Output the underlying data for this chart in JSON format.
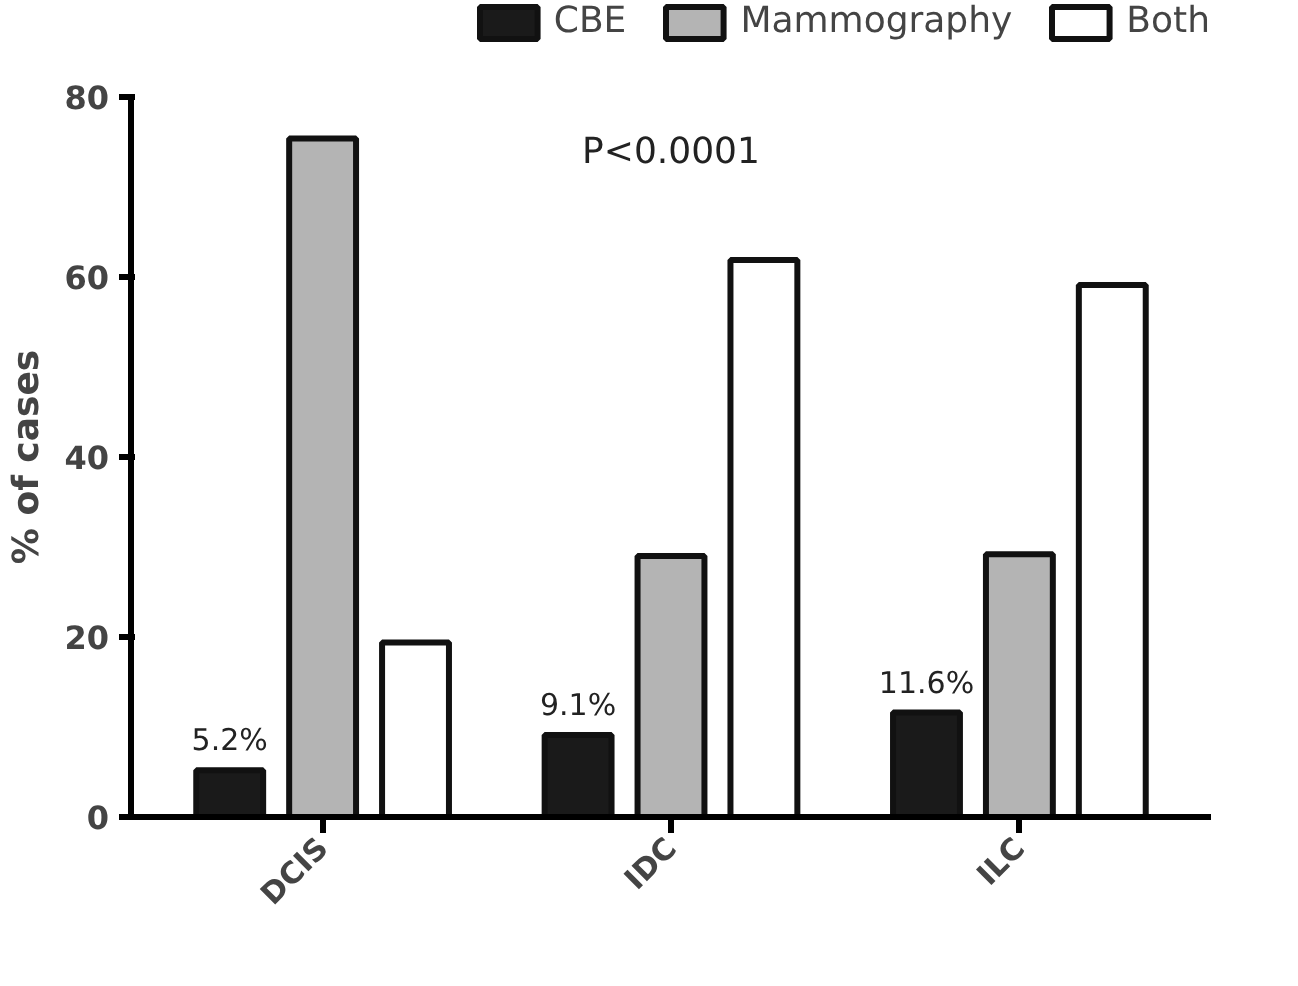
{
  "chart_data": {
    "type": "bar",
    "ylabel": "% of cases",
    "categories": [
      "DCIS",
      "IDC",
      "ILC"
    ],
    "series": [
      {
        "name": "CBE",
        "color": "#1a1a1a",
        "values": [
          5.2,
          9.1,
          11.6
        ],
        "value_labels": [
          "5.2%",
          "9.1%",
          "11.6%"
        ]
      },
      {
        "name": "Mammography",
        "color": "#b4b4b4",
        "values": [
          75.4,
          29.0,
          29.2
        ]
      },
      {
        "name": "Both",
        "color": "#ffffff",
        "values": [
          19.4,
          61.9,
          59.1
        ]
      }
    ],
    "ylim": [
      0,
      80
    ],
    "yticks": [
      0,
      20,
      40,
      60,
      80
    ],
    "grid": false,
    "legend": "top",
    "annotations": [
      "P<0.0001"
    ]
  }
}
